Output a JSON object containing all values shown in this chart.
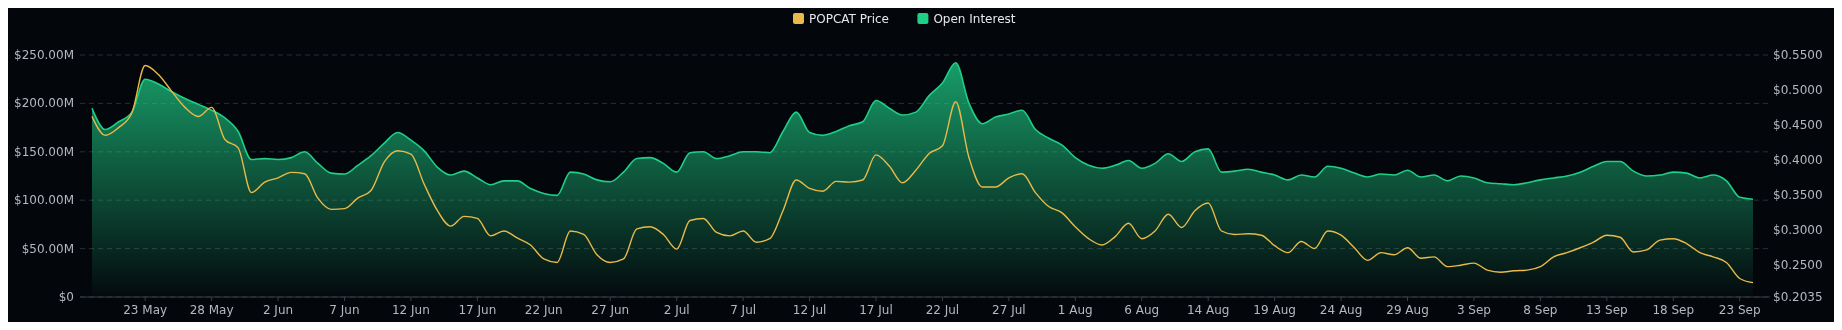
{
  "chart_data": {
    "type": "line",
    "categories": [
      null,
      null,
      null,
      null,
      "23 May",
      null,
      null,
      null,
      null,
      "28 May",
      null,
      null,
      null,
      null,
      "2 Jun",
      null,
      null,
      null,
      null,
      "7 Jun",
      null,
      null,
      null,
      null,
      "12 Jun",
      null,
      null,
      null,
      null,
      "17 Jun",
      null,
      null,
      null,
      null,
      "22 Jun",
      null,
      null,
      null,
      null,
      "27 Jun",
      null,
      null,
      null,
      null,
      "2 Jul",
      null,
      null,
      null,
      null,
      "7 Jul",
      null,
      null,
      null,
      null,
      "12 Jul",
      null,
      null,
      null,
      null,
      "17 Jul",
      null,
      null,
      null,
      null,
      "22 Jul",
      null,
      null,
      null,
      null,
      "27 Jul",
      null,
      null,
      null,
      null,
      "1 Aug",
      null,
      null,
      null,
      null,
      "6 Aug",
      null,
      null,
      null,
      null,
      "14 Aug",
      null,
      null,
      null,
      null,
      "19 Aug",
      null,
      null,
      null,
      null,
      "24 Aug",
      null,
      null,
      null,
      null,
      "29 Aug",
      null,
      null,
      null,
      null,
      "3 Sep",
      null,
      null,
      null,
      null,
      "8 Sep",
      null,
      null,
      null,
      null,
      "13 Sep",
      null,
      null,
      null,
      null,
      "18 Sep",
      null,
      null,
      null,
      null,
      "23 Sep",
      null
    ],
    "series": [
      {
        "name": "POPCAT Price",
        "axis": "y2",
        "color": "#e9b949",
        "values": [
          0.462,
          0.435,
          0.446,
          0.467,
          0.535,
          0.522,
          0.498,
          0.475,
          0.462,
          0.475,
          0.429,
          0.417,
          0.353,
          0.368,
          0.374,
          0.382,
          0.38,
          0.345,
          0.329,
          0.33,
          0.345,
          0.356,
          0.397,
          0.413,
          0.408,
          0.365,
          0.327,
          0.305,
          0.319,
          0.316,
          0.291,
          0.298,
          0.288,
          0.278,
          0.258,
          0.253,
          0.298,
          0.293,
          0.264,
          0.253,
          0.258,
          0.301,
          0.304,
          0.293,
          0.272,
          0.313,
          0.316,
          0.296,
          0.291,
          0.298,
          0.282,
          0.287,
          0.327,
          0.371,
          0.359,
          0.355,
          0.369,
          0.368,
          0.371,
          0.407,
          0.391,
          0.367,
          0.385,
          0.409,
          0.42,
          0.483,
          0.403,
          0.361,
          0.361,
          0.374,
          0.38,
          0.353,
          0.333,
          0.324,
          0.304,
          0.287,
          0.278,
          0.29,
          0.309,
          0.287,
          0.298,
          0.322,
          0.303,
          0.327,
          0.338,
          0.298,
          0.293,
          0.294,
          0.292,
          0.277,
          0.267,
          0.283,
          0.273,
          0.298,
          0.292,
          0.274,
          0.256,
          0.267,
          0.264,
          0.274,
          0.259,
          0.261,
          0.247,
          0.249,
          0.252,
          0.242,
          0.239,
          0.241,
          0.242,
          0.247,
          0.261,
          0.267,
          0.274,
          0.282,
          0.292,
          0.289,
          0.268,
          0.271,
          0.285,
          0.287,
          0.28,
          0.267,
          0.261,
          0.253,
          0.23,
          0.224
        ]
      },
      {
        "name": "Open Interest",
        "type": "area",
        "color": "#1fcf87",
        "values": [
          195,
          173,
          181,
          191,
          225,
          220,
          212,
          205,
          199,
          193,
          185,
          171,
          142,
          143,
          142,
          144,
          150,
          138,
          128,
          127,
          136,
          146,
          159,
          170,
          162,
          151,
          134,
          126,
          130,
          123,
          116,
          120,
          120,
          112,
          107,
          105,
          129,
          127,
          121,
          119,
          129,
          143,
          144,
          138,
          129,
          149,
          150,
          143,
          146,
          150,
          150,
          149,
          171,
          191,
          170,
          167,
          171,
          177,
          181,
          203,
          195,
          188,
          191,
          208,
          221,
          242,
          200,
          179,
          186,
          189,
          193,
          173,
          164,
          157,
          144,
          136,
          133,
          136,
          141,
          133,
          138,
          148,
          140,
          150,
          153,
          129,
          130,
          132,
          129,
          126,
          121,
          126,
          124,
          135,
          133,
          128,
          124,
          127,
          126,
          131,
          124,
          126,
          120,
          125,
          123,
          118,
          117,
          116,
          118,
          121,
          123,
          125,
          129,
          135,
          140,
          140,
          130,
          125,
          126,
          129,
          128,
          123,
          126,
          120,
          103,
          101
        ]
      }
    ],
    "ylim": [
      0,
      250
    ],
    "yticks": [
      {
        "value": 0,
        "label": "$0"
      },
      {
        "value": 50,
        "label": "$50.00M"
      },
      {
        "value": 100,
        "label": "$100.00M"
      },
      {
        "value": 150,
        "label": "$150.00M"
      },
      {
        "value": 200,
        "label": "$200.00M"
      },
      {
        "value": 250,
        "label": "$250.00M"
      }
    ],
    "y2lim": [
      0.2035,
      0.55
    ],
    "y2ticks": [
      {
        "value": 0.2035,
        "label": "$0.2035"
      },
      {
        "value": 0.25,
        "label": "$0.2500"
      },
      {
        "value": 0.3,
        "label": "$0.3000"
      },
      {
        "value": 0.35,
        "label": "$0.3500"
      },
      {
        "value": 0.4,
        "label": "$0.4000"
      },
      {
        "value": 0.45,
        "label": "$0.4500"
      },
      {
        "value": 0.5,
        "label": "$0.5000"
      },
      {
        "value": 0.55,
        "label": "$0.5500"
      }
    ],
    "grid": "y",
    "legend": "top"
  }
}
